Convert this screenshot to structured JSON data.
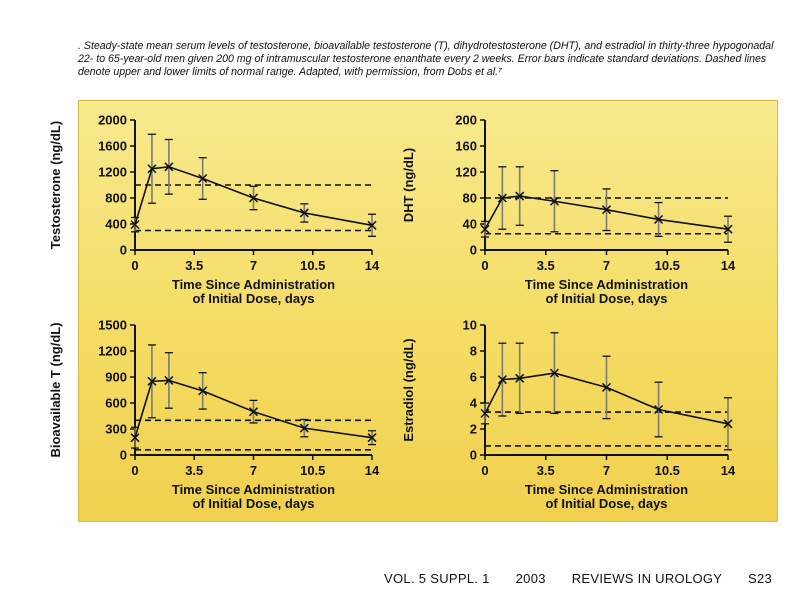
{
  "caption": ". Steady-state mean serum levels of testosterone, bioavailable testosterone (T), dihydrotestosterone (DHT), and estradiol in thirty-three hypogonadal 22- to 65-year-old men given 200 mg of intramuscular testosterone enanthate every 2 weeks. Error bars indicate standard deviations. Dashed lines denote upper and lower limits of normal range. Adapted, with permission, from Dobs et al.⁷",
  "footer": {
    "volume": "VOL. 5 SUPPL. 1",
    "year": "2003",
    "journal": "REVIEWS IN UROLOGY",
    "page": "S23"
  },
  "colors": {
    "panel_background": "#f3d860",
    "line": "#111111",
    "error_bar_gray": "#7a7a7a"
  },
  "chart_data": [
    {
      "type": "line",
      "position": "top-left",
      "ylabel": "Testosterone (ng/dL)",
      "xlabel": "Time Since Administration of Initial Dose, days",
      "x_ticks": [
        "0",
        "3.5",
        "7",
        "10.5",
        "14"
      ],
      "y_ticks": [
        "0",
        "400",
        "800",
        "1200",
        "1600",
        "2000"
      ],
      "xlim": [
        0,
        14
      ],
      "ylim": [
        0,
        2000
      ],
      "x": [
        0,
        1,
        2,
        4,
        7,
        10,
        14
      ],
      "y": [
        390,
        1250,
        1280,
        1100,
        800,
        570,
        380
      ],
      "error": [
        110,
        530,
        420,
        320,
        180,
        140,
        170
      ],
      "normal_range": [
        300,
        1000
      ]
    },
    {
      "type": "line",
      "position": "top-right",
      "ylabel": "DHT (ng/dL)",
      "xlabel": "Time Since Administration of Initial Dose, days",
      "x_ticks": [
        "0",
        "3.5",
        "7",
        "10.5",
        "14"
      ],
      "y_ticks": [
        "0",
        "40",
        "80",
        "120",
        "160",
        "200"
      ],
      "xlim": [
        0,
        14
      ],
      "ylim": [
        0,
        200
      ],
      "x": [
        0,
        1,
        2,
        4,
        7,
        10,
        14
      ],
      "y": [
        32,
        80,
        83,
        75,
        62,
        47,
        32
      ],
      "error": [
        12,
        48,
        45,
        47,
        32,
        26,
        20
      ],
      "normal_range": [
        25,
        80
      ]
    },
    {
      "type": "line",
      "position": "bottom-left",
      "ylabel": "Bioavailable T (ng/dL)",
      "xlabel": "Time Since Administration of Initial Dose, days",
      "x_ticks": [
        "0",
        "3.5",
        "7",
        "10.5",
        "14"
      ],
      "y_ticks": [
        "0",
        "300",
        "600",
        "900",
        "1200",
        "1500"
      ],
      "xlim": [
        0,
        14
      ],
      "ylim": [
        0,
        1500
      ],
      "x": [
        0,
        1,
        2,
        4,
        7,
        10,
        14
      ],
      "y": [
        200,
        850,
        860,
        740,
        500,
        310,
        200
      ],
      "error": [
        120,
        420,
        320,
        210,
        130,
        100,
        80
      ],
      "normal_range": [
        60,
        400
      ]
    },
    {
      "type": "line",
      "position": "bottom-right",
      "ylabel": "Estradiol (ng/dL)",
      "xlabel": "Time Since Administration of Initial Dose, days",
      "x_ticks": [
        "0",
        "3.5",
        "7",
        "10.5",
        "14"
      ],
      "y_ticks": [
        "0",
        "2",
        "4",
        "6",
        "8",
        "10"
      ],
      "xlim": [
        0,
        14
      ],
      "ylim": [
        0,
        10
      ],
      "x": [
        0,
        1,
        2,
        4,
        7,
        10,
        14
      ],
      "y": [
        3.2,
        5.8,
        5.9,
        6.3,
        5.2,
        3.5,
        2.4
      ],
      "error": [
        0.8,
        2.8,
        2.7,
        3.1,
        2.4,
        2.1,
        2.0
      ],
      "normal_range": [
        0.7,
        3.3
      ]
    }
  ]
}
